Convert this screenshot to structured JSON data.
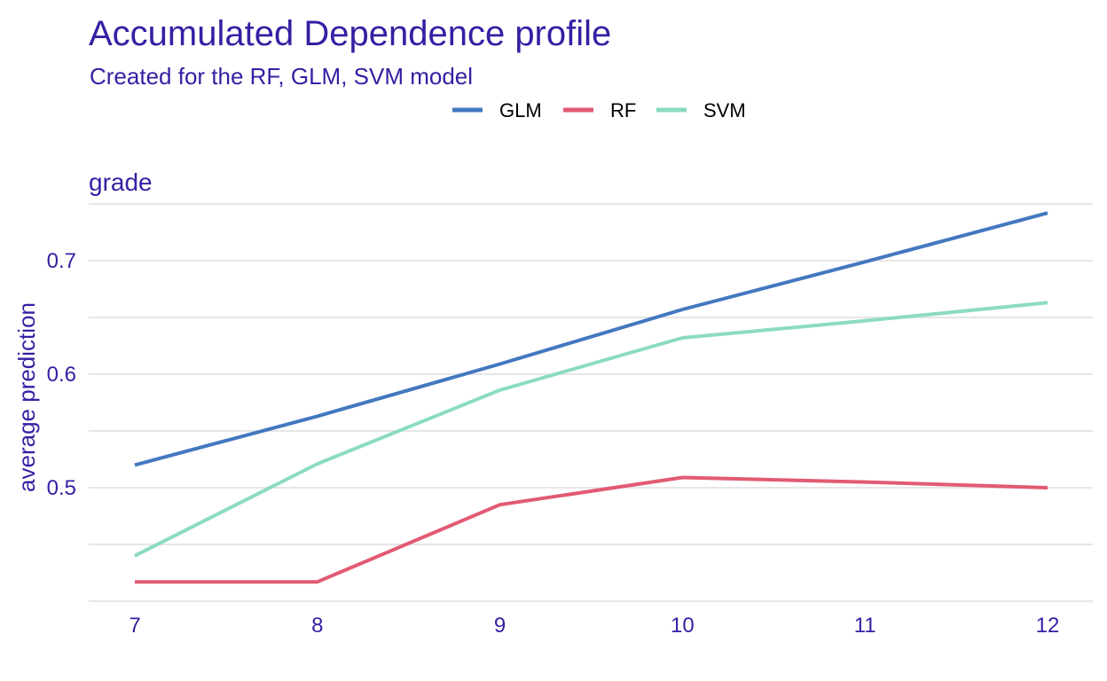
{
  "chart_data": {
    "type": "line",
    "title": "Accumulated Dependence profile",
    "subtitle": "Created for the RF, GLM, SVM model",
    "facet_label": "grade",
    "xlabel": "",
    "ylabel": "average prediction",
    "x": [
      7,
      8,
      9,
      10,
      11,
      12
    ],
    "x_ticks": [
      "7",
      "8",
      "9",
      "10",
      "11",
      "12"
    ],
    "y_ticks": [
      "0.5",
      "0.6",
      "0.7"
    ],
    "y_tick_values": [
      0.5,
      0.6,
      0.7
    ],
    "xlim": [
      7,
      12
    ],
    "ylim": [
      0.4,
      0.75
    ],
    "grid": true,
    "legend_position": "top",
    "series": [
      {
        "name": "GLM",
        "color": "#4378bf",
        "values": [
          0.52,
          0.563,
          0.609,
          0.657,
          0.699,
          0.742
        ]
      },
      {
        "name": "RF",
        "color": "#e25a73",
        "values": [
          0.417,
          0.417,
          0.485,
          0.509,
          0.505,
          0.5
        ]
      },
      {
        "name": "SVM",
        "color": "#8bdcbe",
        "values": [
          0.44,
          0.521,
          0.586,
          0.632,
          0.647,
          0.663
        ]
      }
    ],
    "text_color": "#371ea3",
    "grid_color": "#e6e6e6"
  }
}
